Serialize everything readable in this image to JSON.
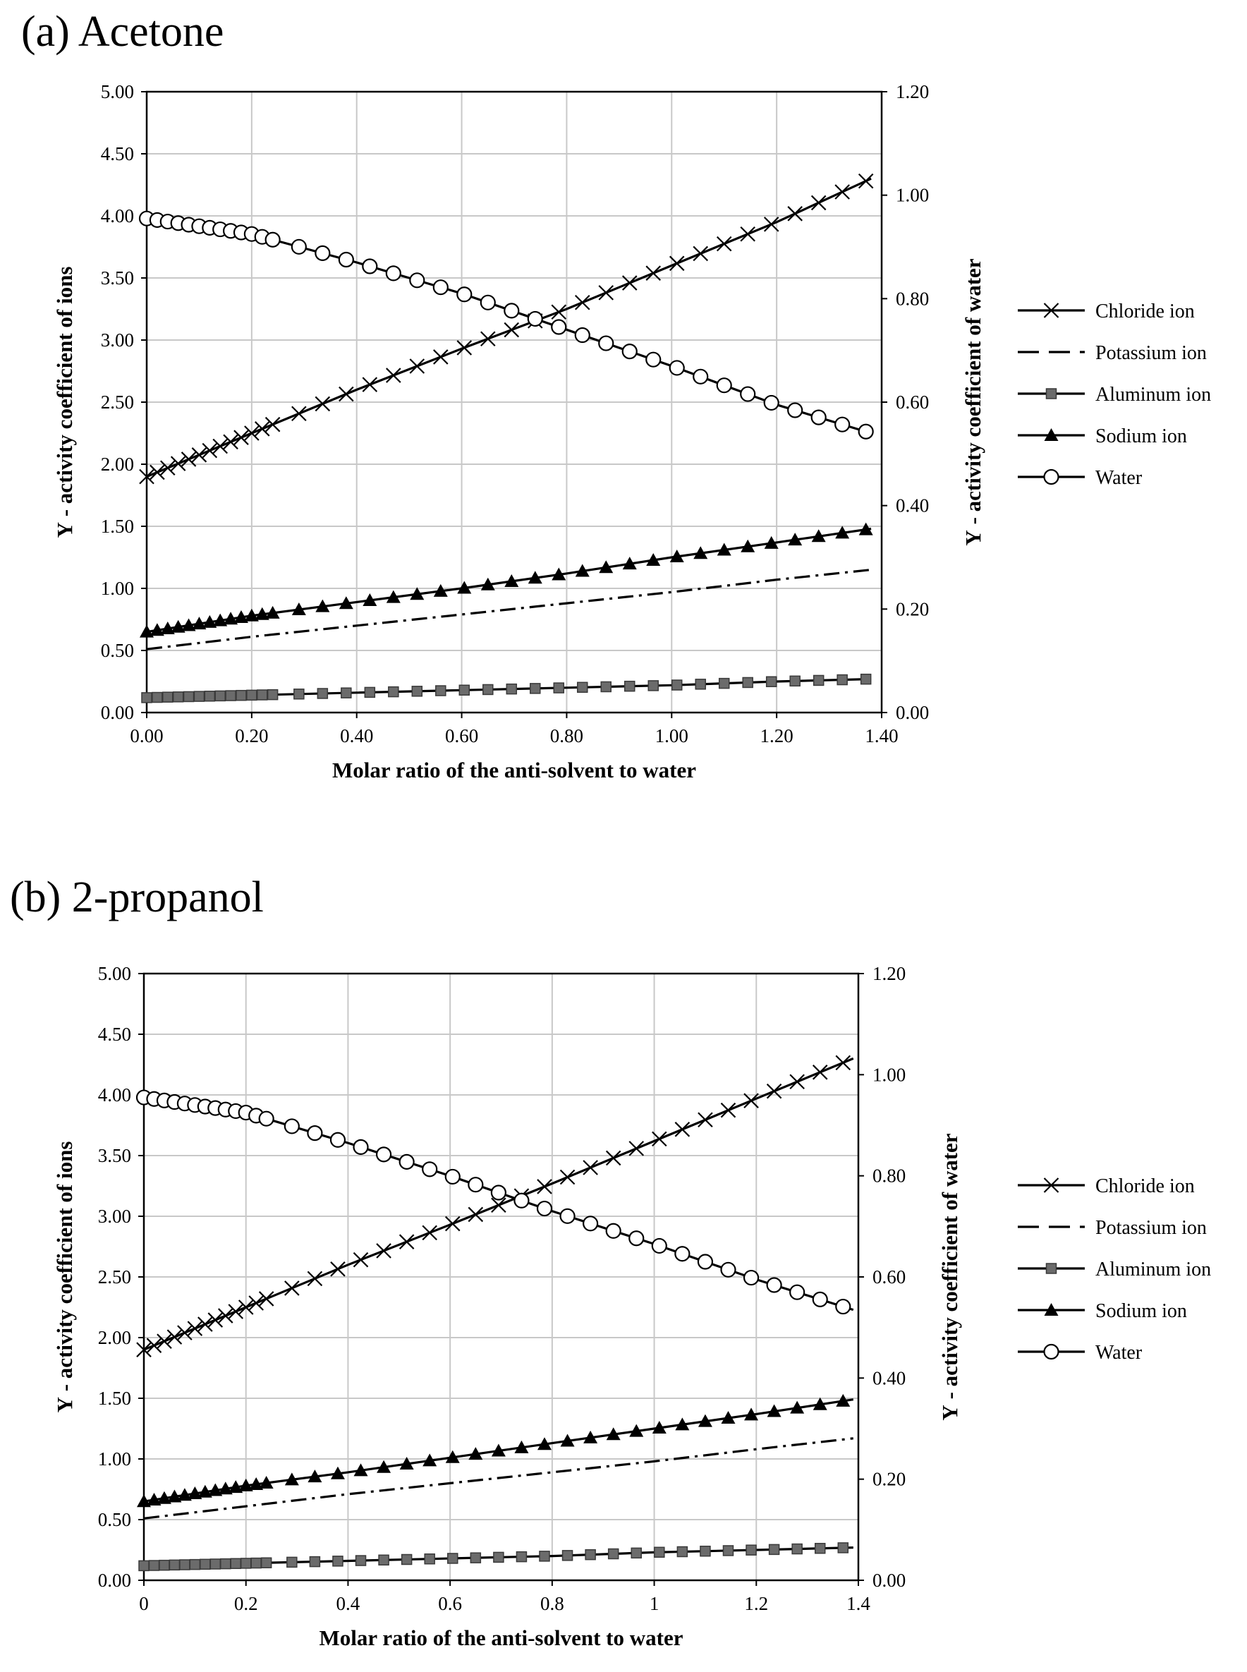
{
  "chart_data": [
    {
      "type": "line",
      "title": "(a) Acetone",
      "xlabel": "Molar ratio of the anti-solvent to water",
      "ylabel": "Υ - activity coefficient of ions",
      "y2label": "Υ - activity coefficient of water",
      "xlim": [
        0,
        1.4
      ],
      "ylim": [
        0,
        5
      ],
      "y2lim": [
        0,
        1.2
      ],
      "grid": true,
      "legend_position": "right",
      "xticks": [
        "0.00",
        "0.20",
        "0.40",
        "0.60",
        "0.80",
        "1.00",
        "1.20",
        "1.40"
      ],
      "yticks": [
        "0.00",
        "0.50",
        "1.00",
        "1.50",
        "2.00",
        "2.50",
        "3.00",
        "3.50",
        "4.00",
        "4.50",
        "5.00"
      ],
      "y2ticks": [
        "0.00",
        "0.20",
        "0.40",
        "0.60",
        "0.80",
        "1.00",
        "1.20"
      ],
      "series": [
        {
          "name": "Chloride ion",
          "axis": "left",
          "marker": "x",
          "dash": "solid",
          "x": [
            0,
            0.2,
            0.4,
            0.6,
            0.8,
            1.0,
            1.2,
            1.38
          ],
          "y": [
            1.9,
            2.25,
            2.6,
            2.93,
            3.25,
            3.6,
            3.95,
            4.3
          ]
        },
        {
          "name": "Potassium ion",
          "axis": "left",
          "marker": "none",
          "dash": "dashdot",
          "x": [
            0,
            0.2,
            0.4,
            0.6,
            0.8,
            1.0,
            1.2,
            1.38
          ],
          "y": [
            0.51,
            0.61,
            0.7,
            0.79,
            0.88,
            0.97,
            1.07,
            1.15
          ]
        },
        {
          "name": "Aluminum ion",
          "axis": "left",
          "marker": "square",
          "dash": "solid",
          "x": [
            0,
            0.2,
            0.4,
            0.6,
            0.8,
            1.0,
            1.2,
            1.38
          ],
          "y": [
            0.12,
            0.14,
            0.16,
            0.18,
            0.2,
            0.22,
            0.25,
            0.27
          ]
        },
        {
          "name": "Sodium ion",
          "axis": "left",
          "marker": "triangle",
          "dash": "solid",
          "x": [
            0,
            0.2,
            0.4,
            0.6,
            0.8,
            1.0,
            1.2,
            1.38
          ],
          "y": [
            0.65,
            0.78,
            0.89,
            1.0,
            1.12,
            1.25,
            1.37,
            1.48
          ]
        },
        {
          "name": "Water",
          "axis": "right",
          "marker": "circle",
          "dash": "solid",
          "x": [
            0,
            0.2,
            0.4,
            0.6,
            0.8,
            1.0,
            1.2,
            1.38
          ],
          "y": [
            0.955,
            0.925,
            0.87,
            0.81,
            0.74,
            0.67,
            0.595,
            0.54
          ]
        }
      ]
    },
    {
      "type": "line",
      "title": "(b) 2-propanol",
      "xlabel": "Molar ratio of the anti-solvent to water",
      "ylabel": "Υ - activity coefficient of ions",
      "y2label": "Υ - activity coefficient of water",
      "xlim": [
        0,
        1.4
      ],
      "ylim": [
        0,
        5
      ],
      "y2lim": [
        0,
        1.2
      ],
      "grid": true,
      "legend_position": "right",
      "xticks": [
        "0",
        "0.2",
        "0.4",
        "0.6",
        "0.8",
        "1",
        "1.2",
        "1.4"
      ],
      "yticks": [
        "0.00",
        "0.50",
        "1.00",
        "1.50",
        "2.00",
        "2.50",
        "3.00",
        "3.50",
        "4.00",
        "4.50",
        "5.00"
      ],
      "y2ticks": [
        "0.00",
        "0.20",
        "0.40",
        "0.60",
        "0.80",
        "1.00",
        "1.20"
      ],
      "series": [
        {
          "name": "Chloride ion",
          "axis": "left",
          "marker": "x",
          "dash": "solid",
          "x": [
            0,
            0.2,
            0.4,
            0.6,
            0.8,
            1.0,
            1.2,
            1.39
          ],
          "y": [
            1.9,
            2.25,
            2.6,
            2.93,
            3.27,
            3.62,
            3.97,
            4.3
          ]
        },
        {
          "name": "Potassium ion",
          "axis": "left",
          "marker": "none",
          "dash": "dashdot",
          "x": [
            0,
            0.2,
            0.4,
            0.6,
            0.8,
            1.0,
            1.2,
            1.39
          ],
          "y": [
            0.51,
            0.61,
            0.71,
            0.8,
            0.89,
            0.98,
            1.08,
            1.17
          ]
        },
        {
          "name": "Aluminum ion",
          "axis": "left",
          "marker": "square",
          "dash": "solid",
          "x": [
            0,
            0.2,
            0.4,
            0.6,
            0.8,
            1.0,
            1.2,
            1.39
          ],
          "y": [
            0.12,
            0.14,
            0.16,
            0.18,
            0.2,
            0.23,
            0.25,
            0.27
          ]
        },
        {
          "name": "Sodium ion",
          "axis": "left",
          "marker": "triangle",
          "dash": "solid",
          "x": [
            0,
            0.2,
            0.4,
            0.6,
            0.8,
            1.0,
            1.2,
            1.39
          ],
          "y": [
            0.65,
            0.78,
            0.89,
            1.01,
            1.13,
            1.25,
            1.37,
            1.49
          ]
        },
        {
          "name": "Water",
          "axis": "right",
          "marker": "circle",
          "dash": "solid",
          "x": [
            0,
            0.2,
            0.4,
            0.6,
            0.8,
            1.0,
            1.2,
            1.39
          ],
          "y": [
            0.955,
            0.925,
            0.865,
            0.8,
            0.73,
            0.665,
            0.595,
            0.535
          ]
        }
      ]
    }
  ]
}
